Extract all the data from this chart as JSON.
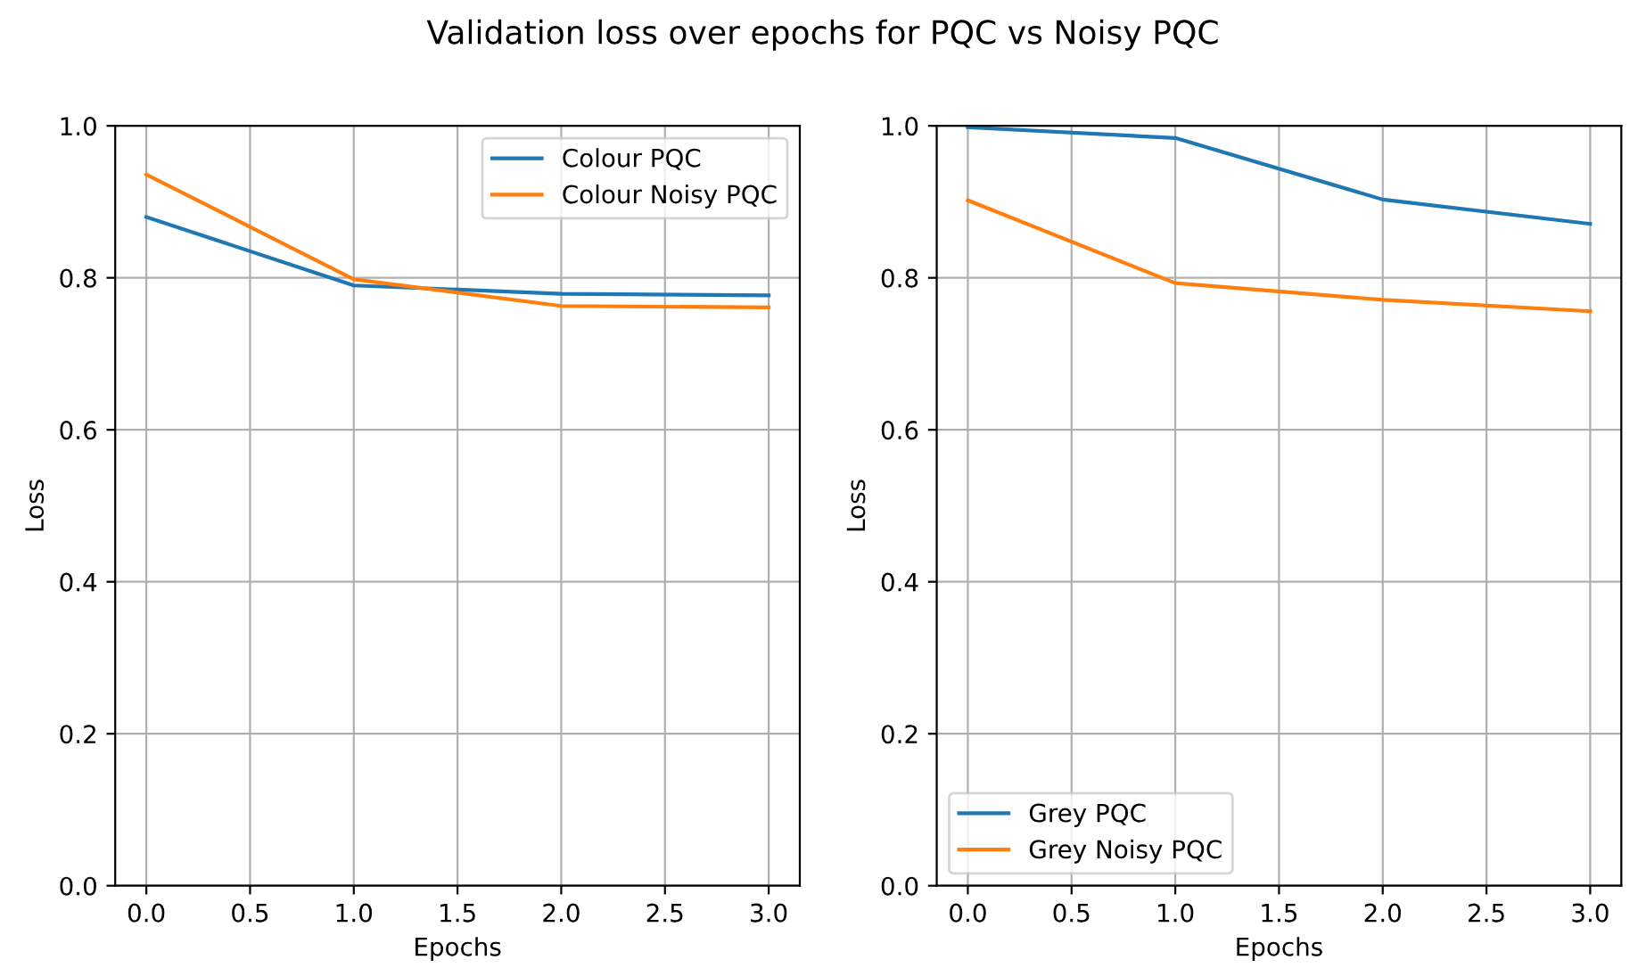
{
  "chart_data": [
    {
      "type": "line",
      "title": "Validation loss over epochs for PQC vs Noisy PQC",
      "xlabel": "Epochs",
      "ylabel": "Loss",
      "x": [
        0,
        1,
        2,
        3
      ],
      "xlim": [
        -0.15,
        3.15
      ],
      "xticks": [
        {
          "value": 0,
          "label": "0.0"
        },
        {
          "value": 0.5,
          "label": "0.5"
        },
        {
          "value": 1,
          "label": "1.0"
        },
        {
          "value": 1.5,
          "label": "1.5"
        },
        {
          "value": 2,
          "label": "2.0"
        },
        {
          "value": 2.5,
          "label": "2.5"
        },
        {
          "value": 3,
          "label": "3.0"
        }
      ],
      "ylim": [
        0,
        1
      ],
      "yticks": [
        {
          "value": 0,
          "label": "0.0"
        },
        {
          "value": 0.2,
          "label": "0.2"
        },
        {
          "value": 0.4,
          "label": "0.4"
        },
        {
          "value": 0.6,
          "label": "0.6"
        },
        {
          "value": 0.8,
          "label": "0.8"
        },
        {
          "value": 1,
          "label": "1.0"
        }
      ],
      "grid": true,
      "legend": "top right",
      "series": [
        {
          "name": "Colour PQC",
          "color": "#1f77b4",
          "values": [
            0.88,
            0.79,
            0.779,
            0.777
          ]
        },
        {
          "name": "Colour Noisy PQC",
          "color": "#ff7f0e",
          "values": [
            0.936,
            0.798,
            0.763,
            0.761
          ]
        }
      ]
    },
    {
      "type": "line",
      "xlabel": "Epochs",
      "ylabel": "Loss",
      "x": [
        0,
        1,
        2,
        3
      ],
      "xlim": [
        -0.15,
        3.15
      ],
      "xticks": [
        {
          "value": 0,
          "label": "0.0"
        },
        {
          "value": 0.5,
          "label": "0.5"
        },
        {
          "value": 1,
          "label": "1.0"
        },
        {
          "value": 1.5,
          "label": "1.5"
        },
        {
          "value": 2,
          "label": "2.0"
        },
        {
          "value": 2.5,
          "label": "2.5"
        },
        {
          "value": 3,
          "label": "3.0"
        }
      ],
      "ylim": [
        0,
        1
      ],
      "yticks": [
        {
          "value": 0,
          "label": "0.0"
        },
        {
          "value": 0.2,
          "label": "0.2"
        },
        {
          "value": 0.4,
          "label": "0.4"
        },
        {
          "value": 0.6,
          "label": "0.6"
        },
        {
          "value": 0.8,
          "label": "0.8"
        },
        {
          "value": 1,
          "label": "1.0"
        }
      ],
      "grid": true,
      "legend": "bottom left",
      "series": [
        {
          "name": "Grey PQC",
          "color": "#1f77b4",
          "values": [
            0.998,
            0.984,
            0.903,
            0.871
          ]
        },
        {
          "name": "Grey Noisy PQC",
          "color": "#ff7f0e",
          "values": [
            0.902,
            0.793,
            0.771,
            0.756
          ]
        }
      ]
    }
  ]
}
